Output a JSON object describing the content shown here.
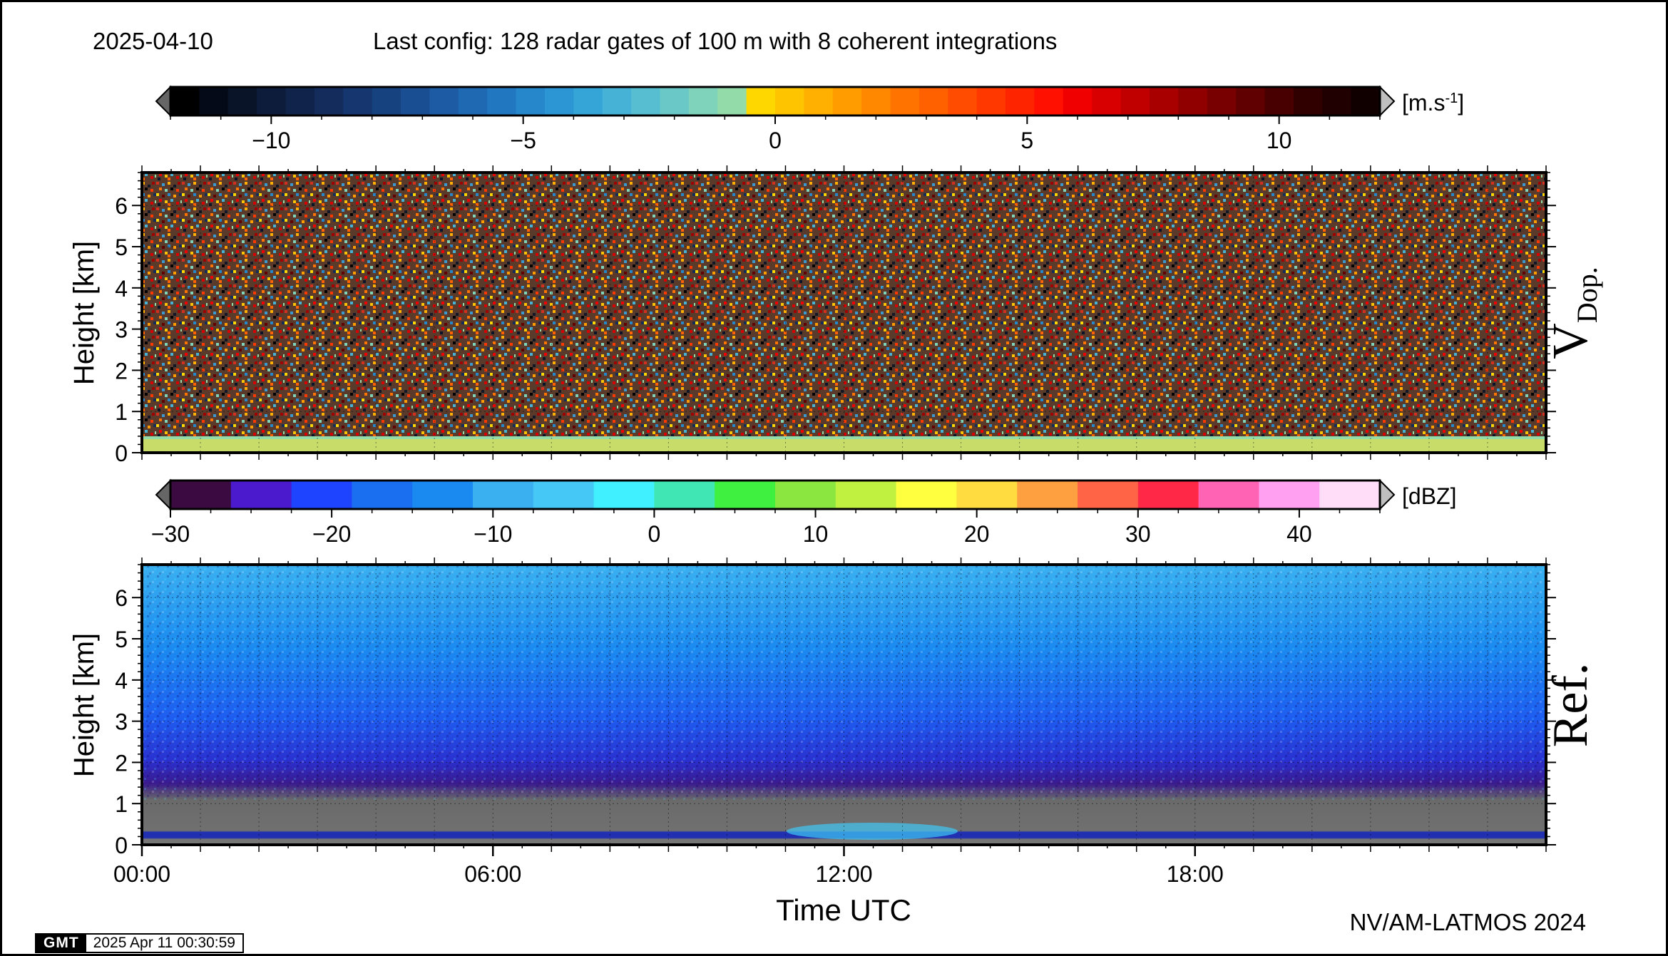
{
  "header": {
    "date": "2025-04-10",
    "config": "Last config: 128 radar gates of 100 m with 8 coherent integrations"
  },
  "footer": {
    "credit": "NV/AM-LATMOS 2024",
    "gmt_logo": "GMT",
    "gmt_timestamp": "2025 Apr 11 00:30:59"
  },
  "chart_data": [
    {
      "type": "heatmap",
      "panel_label": "V",
      "panel_label_sub": "Dop.",
      "ylabel": "Height [km]",
      "xlabel": "",
      "ylim": [
        0,
        6.8
      ],
      "yticks": [
        0,
        1,
        2,
        3,
        4,
        5,
        6
      ],
      "xlim_hours": [
        0,
        24
      ],
      "grid": true,
      "colorbar": {
        "unit": "[m.s",
        "unit_sup": "-1",
        "unit_close": "]",
        "range": [
          -12,
          12
        ],
        "ticks": [
          -10,
          -5,
          0,
          5,
          10
        ],
        "tick_labels": [
          "−10",
          "−5",
          "0",
          "5",
          "10"
        ],
        "colors": [
          "#000000",
          "#050a18",
          "#0a1428",
          "#0d1c3a",
          "#10234a",
          "#132c5c",
          "#15366e",
          "#174280",
          "#1a4e92",
          "#1d5ba4",
          "#1f69b3",
          "#2278c0",
          "#2687cb",
          "#2b96d3",
          "#35a4d6",
          "#45b2d6",
          "#57bed1",
          "#6ac9c6",
          "#7ed3ba",
          "#93dcaa",
          "#ffd700",
          "#ffc400",
          "#ffb000",
          "#ff9c00",
          "#ff8800",
          "#ff7400",
          "#ff6000",
          "#ff4c00",
          "#ff3800",
          "#ff2400",
          "#ff1000",
          "#f00000",
          "#d80000",
          "#c00000",
          "#a80000",
          "#900000",
          "#780000",
          "#600000",
          "#480000",
          "#300000",
          "#200000",
          "#100000"
        ]
      },
      "description_bands": [
        {
          "from_km": 0.0,
          "to_km": 0.3,
          "dominant": "yellow-green"
        }
      ]
    },
    {
      "type": "heatmap",
      "panel_label": "Ref.",
      "ylabel": "Height [km]",
      "xlabel": "Time UTC",
      "ylim": [
        0,
        6.8
      ],
      "yticks": [
        0,
        1,
        2,
        3,
        4,
        5,
        6
      ],
      "xlim_hours": [
        0,
        24
      ],
      "xticks_hours": [
        0,
        6,
        12,
        18
      ],
      "xtick_labels": [
        "00:00",
        "06:00",
        "12:00",
        "18:00"
      ],
      "grid": true,
      "colorbar": {
        "unit": "[dBZ]",
        "range": [
          -30,
          45
        ],
        "ticks": [
          -30,
          -20,
          -10,
          0,
          10,
          20,
          30,
          40
        ],
        "tick_labels": [
          "−30",
          "−20",
          "−10",
          "0",
          "10",
          "20",
          "30",
          "40"
        ],
        "colors": [
          "#3a0a40",
          "#4a1acc",
          "#1e44ff",
          "#1a6ff0",
          "#1b8af0",
          "#3bb0f0",
          "#45c8f5",
          "#40f0ff",
          "#40e6b4",
          "#40f040",
          "#8ce640",
          "#c0f040",
          "#ffff40",
          "#ffdc40",
          "#ffa040",
          "#ff6446",
          "#ff2846",
          "#ff64b4",
          "#ffa0f0",
          "#ffdcf8"
        ]
      }
    }
  ]
}
